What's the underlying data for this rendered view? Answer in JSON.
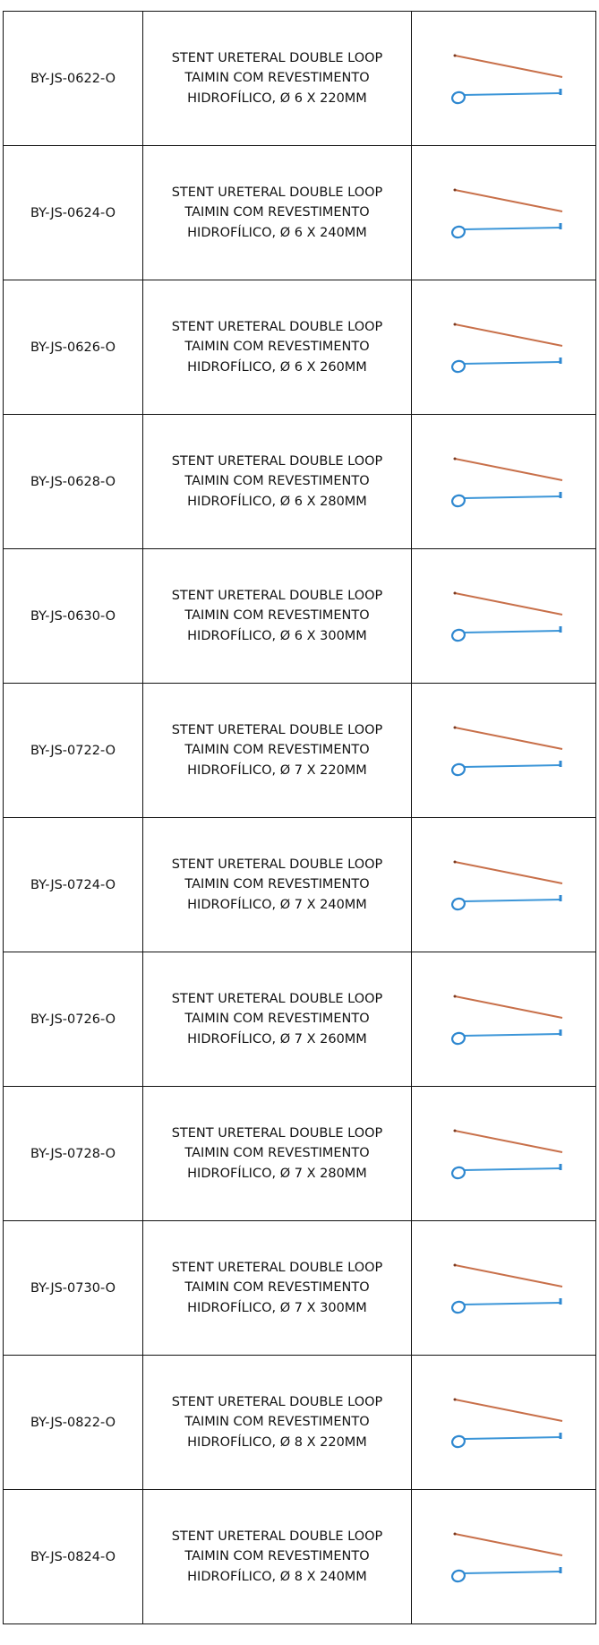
{
  "table": {
    "rows": [
      {
        "code": "BY-JS-0622-O",
        "description": [
          "STENT URETERAL DOUBLE LOOP",
          "TAIMIN COM REVESTIMENTO",
          "HIDROFÍLICO, Ø 6 X 220MM"
        ]
      },
      {
        "code": "BY-JS-0624-O",
        "description": [
          "STENT URETERAL DOUBLE LOOP",
          "TAIMIN COM REVESTIMENTO",
          "HIDROFÍLICO, Ø 6 X 240MM"
        ]
      },
      {
        "code": "BY-JS-0626-O",
        "description": [
          "STENT URETERAL DOUBLE LOOP",
          "TAIMIN COM REVESTIMENTO",
          "HIDROFÍLICO, Ø 6 X 260MM"
        ]
      },
      {
        "code": "BY-JS-0628-O",
        "description": [
          "STENT URETERAL DOUBLE LOOP",
          "TAIMIN COM REVESTIMENTO",
          "HIDROFÍLICO, Ø 6 X 280MM"
        ]
      },
      {
        "code": "BY-JS-0630-O",
        "description": [
          "STENT URETERAL DOUBLE LOOP",
          "TAIMIN COM REVESTIMENTO",
          "HIDROFÍLICO, Ø 6 X 300MM"
        ]
      },
      {
        "code": "BY-JS-0722-O",
        "description": [
          "STENT URETERAL DOUBLE LOOP",
          "TAIMIN COM REVESTIMENTO",
          "HIDROFÍLICO, Ø 7 X 220MM"
        ]
      },
      {
        "code": "BY-JS-0724-O",
        "description": [
          "STENT URETERAL DOUBLE LOOP",
          "TAIMIN COM REVESTIMENTO",
          "HIDROFÍLICO, Ø 7 X 240MM"
        ]
      },
      {
        "code": "BY-JS-0726-O",
        "description": [
          "STENT URETERAL DOUBLE LOOP",
          "TAIMIN COM REVESTIMENTO",
          "HIDROFÍLICO, Ø 7 X 260MM"
        ]
      },
      {
        "code": "BY-JS-0728-O",
        "description": [
          "STENT URETERAL DOUBLE LOOP",
          "TAIMIN COM REVESTIMENTO",
          "HIDROFÍLICO, Ø 7 X 280MM"
        ]
      },
      {
        "code": "BY-JS-0730-O",
        "description": [
          "STENT URETERAL DOUBLE LOOP",
          "TAIMIN COM REVESTIMENTO",
          "HIDROFÍLICO, Ø 7 X 300MM"
        ]
      },
      {
        "code": "BY-JS-0822-O",
        "description": [
          "STENT URETERAL DOUBLE LOOP",
          "TAIMIN COM REVESTIMENTO",
          "HIDROFÍLICO, Ø 8 X 220MM"
        ]
      },
      {
        "code": "BY-JS-0824-O",
        "description": [
          "STENT URETERAL DOUBLE LOOP",
          "TAIMIN COM REVESTIMENTO",
          "HIDROFÍLICO, Ø 8 X 240MM"
        ]
      }
    ]
  }
}
